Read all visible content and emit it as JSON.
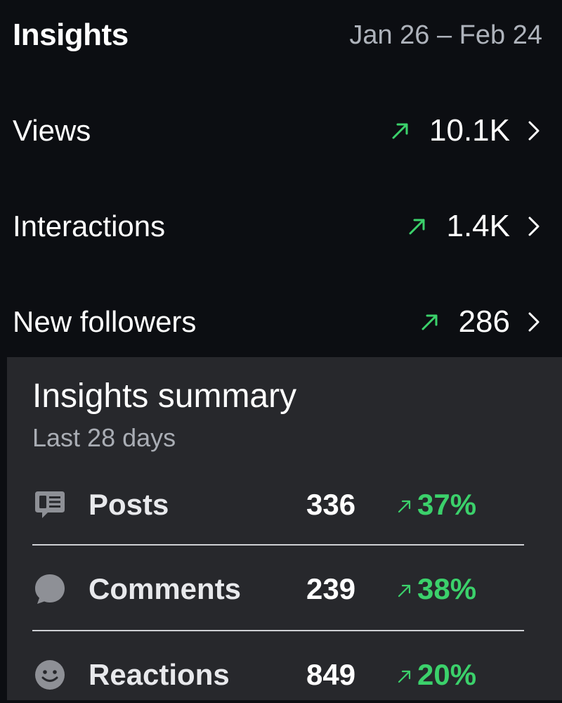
{
  "header": {
    "title": "Insights",
    "date_range": "Jan 26 – Feb 24"
  },
  "metrics": [
    {
      "label": "Views",
      "value": "10.1K",
      "trend": "up"
    },
    {
      "label": "Interactions",
      "value": "1.4K",
      "trend": "up"
    },
    {
      "label": "New followers",
      "value": "286",
      "trend": "up"
    }
  ],
  "summary": {
    "title": "Insights summary",
    "subtitle": "Last 28 days",
    "rows": [
      {
        "icon": "posts-icon",
        "label": "Posts",
        "count": "336",
        "change": "37%"
      },
      {
        "icon": "comment-bubble-icon",
        "label": "Comments",
        "count": "239",
        "change": "38%"
      },
      {
        "icon": "smiley-icon",
        "label": "Reactions",
        "count": "849",
        "change": "20%"
      }
    ]
  },
  "colors": {
    "background": "#0c0e12",
    "card": "#27282c",
    "trend_up": "#3bd16b",
    "muted": "#aeb3bb"
  }
}
